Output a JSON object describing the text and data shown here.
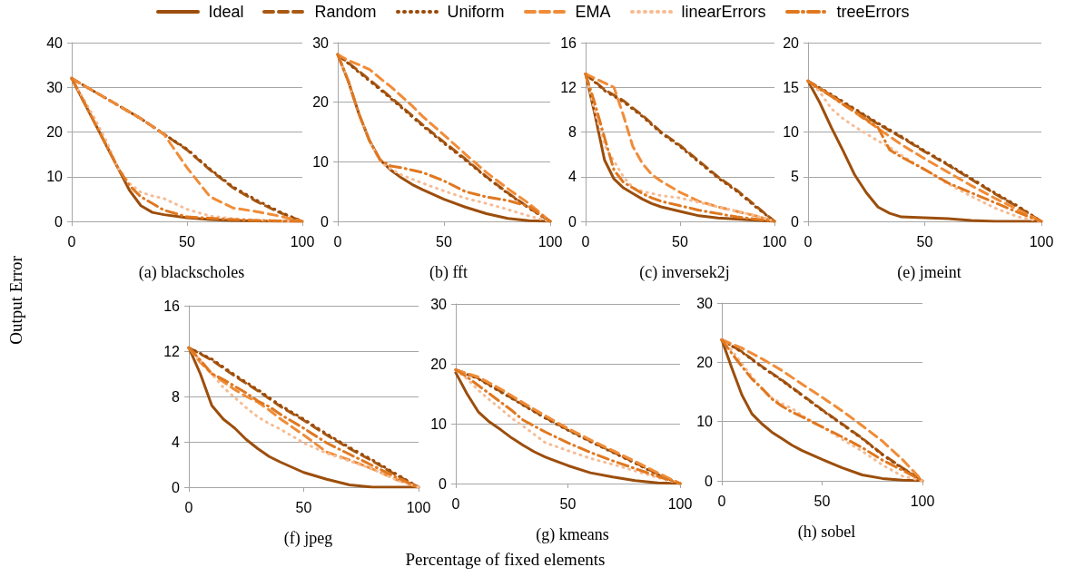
{
  "chart_data": [
    {
      "type": "line",
      "title": "(a) blackscholes",
      "ylabel": "Output Error",
      "legend": "top",
      "marker": "none",
      "grid": "y",
      "xlim": [
        0,
        100
      ],
      "xticks": [
        0,
        50,
        100
      ],
      "ylim": [
        0,
        40
      ],
      "yticks": [
        0,
        10,
        20,
        30,
        40
      ],
      "x": [
        0,
        5,
        10,
        15,
        20,
        25,
        30,
        35,
        40,
        50,
        60,
        70,
        80,
        90,
        100
      ],
      "series": [
        {
          "name": "Ideal",
          "color": "#9c4e0c",
          "line_style": "solid",
          "values": [
            32,
            27,
            22,
            17,
            12,
            7,
            3.5,
            2,
            1.5,
            0.8,
            0.4,
            0.2,
            0.1,
            0,
            0
          ]
        },
        {
          "name": "Random",
          "color": "#a85a14",
          "line_style": "dashed",
          "x": [
            0,
            10,
            20,
            30,
            40,
            50,
            60,
            70,
            80,
            90,
            100
          ],
          "values": [
            32,
            29,
            26,
            23,
            19.5,
            16,
            11.5,
            7.5,
            4.5,
            2,
            0
          ]
        },
        {
          "name": "Uniform",
          "color": "#9a4a0a",
          "line_style": "dotted",
          "x": [
            0,
            10,
            20,
            30,
            40,
            50,
            60,
            70,
            80,
            90,
            100
          ],
          "values": [
            32,
            29,
            26,
            23,
            19.5,
            16.2,
            11.7,
            7.7,
            4.8,
            2.2,
            0
          ]
        },
        {
          "name": "EMA",
          "color": "#f08c38",
          "line_style": "dashed",
          "x": [
            0,
            10,
            20,
            30,
            40,
            50,
            60,
            70,
            80,
            90,
            100
          ],
          "values": [
            32,
            29,
            26,
            23,
            19.5,
            12,
            5.5,
            3,
            2.2,
            1.2,
            0
          ]
        },
        {
          "name": "linearErrors",
          "color": "#f6bc94",
          "line_style": "dotted",
          "values": [
            32,
            27.5,
            23,
            18,
            12,
            8.5,
            6.5,
            5.7,
            5.1,
            2.7,
            1.2,
            0.6,
            0.3,
            0.1,
            0
          ]
        },
        {
          "name": "treeErrors",
          "color": "#e07820",
          "line_style": "dashdot",
          "values": [
            32,
            27,
            22,
            17,
            12,
            8,
            5.5,
            4,
            2.5,
            1,
            0.7,
            0.4,
            0.2,
            0.1,
            0
          ]
        }
      ]
    },
    {
      "type": "line",
      "title": "(b) fft",
      "marker": "none",
      "grid": "y",
      "xlim": [
        0,
        100
      ],
      "xticks": [
        0,
        50,
        100
      ],
      "ylim": [
        0,
        30
      ],
      "yticks": [
        0,
        10,
        20,
        30
      ],
      "x": [
        0,
        5,
        10,
        15,
        20,
        25,
        30,
        35,
        40,
        50,
        60,
        70,
        80,
        90,
        100
      ],
      "series": [
        {
          "color": "#9c4e0c",
          "line_style": "solid",
          "values": [
            28,
            23.5,
            18,
            13.5,
            10.3,
            8.6,
            7.3,
            6.2,
            5.3,
            3.7,
            2.4,
            1.3,
            0.5,
            0.1,
            0
          ]
        },
        {
          "color": "#a85a14",
          "line_style": "dashed",
          "x": [
            0,
            10,
            20,
            30,
            40,
            50,
            60,
            70,
            80,
            90,
            100
          ],
          "values": [
            28,
            25.2,
            22.3,
            19.3,
            16.2,
            13.3,
            10.5,
            7.5,
            4.8,
            2.3,
            0
          ]
        },
        {
          "color": "#9a4a0a",
          "line_style": "dotted",
          "x": [
            0,
            10,
            20,
            30,
            40,
            50,
            60,
            70,
            80,
            90,
            100
          ],
          "values": [
            28,
            25,
            22.1,
            19.1,
            16,
            13.1,
            10.3,
            7.4,
            4.7,
            2.2,
            0
          ]
        },
        {
          "color": "#f08c38",
          "line_style": "dashed",
          "values": [
            28,
            27,
            26.3,
            25.5,
            24,
            22.6,
            21,
            19.4,
            17.6,
            14.5,
            11.3,
            8.2,
            5.5,
            3,
            0
          ]
        },
        {
          "color": "#f6bc94",
          "line_style": "dotted",
          "values": [
            28,
            23.5,
            18,
            13.5,
            10,
            8.8,
            7.8,
            7.1,
            6.4,
            5.1,
            3.9,
            3,
            2,
            0.9,
            0
          ]
        },
        {
          "color": "#e07820",
          "line_style": "dashdot",
          "values": [
            28,
            23.5,
            18,
            13.5,
            10.3,
            9.3,
            9,
            8.6,
            8.2,
            6.8,
            5,
            4.1,
            3.5,
            2.5,
            0
          ]
        }
      ]
    },
    {
      "type": "line",
      "title": "(c) inversek2j",
      "marker": "none",
      "grid": "y",
      "xlim": [
        0,
        100
      ],
      "xticks": [
        0,
        50,
        100
      ],
      "ylim": [
        0,
        16
      ],
      "yticks": [
        0,
        4,
        8,
        12,
        16
      ],
      "x": [
        0,
        5,
        10,
        15,
        20,
        25,
        30,
        35,
        40,
        50,
        60,
        70,
        80,
        90,
        100
      ],
      "series": [
        {
          "color": "#9c4e0c",
          "line_style": "solid",
          "values": [
            13.2,
            9.5,
            5.5,
            3.8,
            3,
            2.5,
            2,
            1.6,
            1.3,
            0.9,
            0.5,
            0.3,
            0.2,
            0.1,
            0
          ]
        },
        {
          "color": "#a85a14",
          "line_style": "dashed",
          "x": [
            0,
            10,
            20,
            30,
            40,
            50,
            60,
            70,
            80,
            90,
            100
          ],
          "values": [
            13.2,
            11.8,
            10.8,
            9.5,
            8,
            6.8,
            5.4,
            4,
            2.8,
            1.4,
            0
          ]
        },
        {
          "color": "#9a4a0a",
          "line_style": "dotted",
          "x": [
            0,
            10,
            20,
            30,
            40,
            50,
            60,
            70,
            80,
            90,
            100
          ],
          "values": [
            13.2,
            11.7,
            10.7,
            9.4,
            7.9,
            6.7,
            5.3,
            3.9,
            2.7,
            1.3,
            0
          ]
        },
        {
          "color": "#f08c38",
          "line_style": "dashed",
          "values": [
            13.2,
            12.8,
            12.4,
            12,
            9.5,
            6.7,
            5.2,
            4.2,
            3.6,
            2.6,
            1.8,
            1.3,
            0.9,
            0.5,
            0
          ]
        },
        {
          "color": "#f6bc94",
          "line_style": "dotted",
          "values": [
            13.2,
            9.8,
            6.8,
            5.4,
            4,
            3,
            2.7,
            2.5,
            2.3,
            2.1,
            1.7,
            1.3,
            0.9,
            0.5,
            0
          ]
        },
        {
          "color": "#e07820",
          "line_style": "dashdot",
          "values": [
            13.2,
            10.5,
            7.5,
            4.6,
            3.5,
            3,
            2.5,
            2.1,
            1.8,
            1.4,
            1,
            0.7,
            0.4,
            0.2,
            0
          ]
        }
      ]
    },
    {
      "type": "line",
      "title": "(e) jmeint",
      "marker": "none",
      "grid": "y",
      "xlim": [
        0,
        100
      ],
      "xticks": [
        0,
        50,
        100
      ],
      "ylim": [
        0,
        20
      ],
      "yticks": [
        0,
        5,
        10,
        15,
        20
      ],
      "x": [
        0,
        5,
        10,
        15,
        20,
        25,
        30,
        35,
        40,
        50,
        60,
        70,
        80,
        90,
        100
      ],
      "series": [
        {
          "color": "#9c4e0c",
          "line_style": "solid",
          "values": [
            15.7,
            13.3,
            10.5,
            7.9,
            5.2,
            3.2,
            1.6,
            0.9,
            0.5,
            0.4,
            0.3,
            0.1,
            0,
            0,
            0
          ]
        },
        {
          "color": "#a85a14",
          "line_style": "dashed",
          "x": [
            0,
            10,
            20,
            30,
            40,
            50,
            60,
            70,
            80,
            90,
            100
          ],
          "values": [
            15.7,
            14.1,
            12.5,
            10.9,
            9.4,
            7.8,
            6.3,
            4.7,
            3.1,
            1.6,
            0
          ]
        },
        {
          "color": "#9a4a0a",
          "line_style": "dotted",
          "x": [
            0,
            10,
            20,
            30,
            40,
            50,
            60,
            70,
            80,
            90,
            100
          ],
          "values": [
            15.7,
            14.2,
            12.6,
            11,
            9.5,
            7.9,
            6.4,
            4.8,
            3.2,
            1.7,
            0
          ]
        },
        {
          "color": "#f08c38",
          "line_style": "dashed",
          "x": [
            0,
            10,
            20,
            30,
            40,
            50,
            60,
            70,
            80,
            90,
            100
          ],
          "values": [
            15.7,
            14,
            12.2,
            10.4,
            8.6,
            7,
            5.5,
            4,
            2.6,
            1.3,
            0
          ]
        },
        {
          "color": "#f6bc94",
          "line_style": "dotted",
          "values": [
            15.7,
            14.5,
            12.6,
            11.5,
            10.6,
            9.8,
            9,
            8.3,
            7.4,
            5.8,
            4.2,
            2.8,
            1.5,
            0.5,
            0
          ]
        },
        {
          "color": "#e07820",
          "line_style": "dashdot",
          "values": [
            15.7,
            14.8,
            14,
            13.1,
            12.3,
            11.4,
            10.5,
            8,
            7.2,
            5.8,
            4.3,
            3.2,
            2.1,
            1,
            0
          ]
        }
      ]
    },
    {
      "type": "line",
      "title": "(f) jpeg",
      "marker": "none",
      "grid": "y",
      "xlim": [
        0,
        100
      ],
      "xticks": [
        0,
        50,
        100
      ],
      "ylim": [
        0,
        16
      ],
      "yticks": [
        0,
        4,
        8,
        12,
        16
      ],
      "x": [
        0,
        5,
        10,
        15,
        20,
        25,
        30,
        35,
        40,
        50,
        60,
        70,
        80,
        90,
        100
      ],
      "series": [
        {
          "color": "#9c4e0c",
          "line_style": "solid",
          "values": [
            12.3,
            10,
            7.2,
            6,
            5.2,
            4.2,
            3.4,
            2.7,
            2.2,
            1.3,
            0.7,
            0.2,
            0,
            0,
            0
          ]
        },
        {
          "color": "#a85a14",
          "line_style": "dashed",
          "x": [
            0,
            10,
            20,
            30,
            40,
            50,
            60,
            70,
            80,
            90,
            100
          ],
          "values": [
            12.3,
            11.2,
            9.8,
            8.5,
            7.1,
            5.9,
            4.6,
            3.4,
            2.3,
            1.1,
            0
          ]
        },
        {
          "color": "#9a4a0a",
          "line_style": "dotted",
          "x": [
            0,
            10,
            20,
            30,
            40,
            50,
            60,
            70,
            80,
            90,
            100
          ],
          "values": [
            12.3,
            11.3,
            9.9,
            8.6,
            7.2,
            6,
            4.7,
            3.5,
            2.4,
            1.2,
            0
          ]
        },
        {
          "color": "#f08c38",
          "line_style": "dashed",
          "values": [
            12.3,
            11,
            10,
            9.3,
            8.6,
            8,
            7.5,
            6.8,
            6,
            4.6,
            3.1,
            2.4,
            1.6,
            0.7,
            0
          ]
        },
        {
          "color": "#f6bc94",
          "line_style": "dotted",
          "values": [
            12.3,
            11.2,
            10,
            8.8,
            7.9,
            7,
            6.2,
            5.6,
            5.1,
            3.9,
            3,
            2.3,
            1.6,
            0.7,
            0
          ]
        },
        {
          "color": "#e07820",
          "line_style": "dashdot",
          "values": [
            12.3,
            11.2,
            10,
            9.5,
            8.9,
            8.3,
            7.6,
            7.1,
            6.4,
            5.2,
            3.9,
            2.9,
            1.9,
            0.9,
            0
          ]
        }
      ]
    },
    {
      "type": "line",
      "title": "(g) kmeans",
      "xlabel": "Percentage of fixed elements",
      "marker": "none",
      "grid": "y",
      "xlim": [
        0,
        100
      ],
      "xticks": [
        0,
        50,
        100
      ],
      "ylim": [
        0,
        30
      ],
      "yticks": [
        0,
        10,
        20,
        30
      ],
      "x": [
        0,
        5,
        10,
        15,
        20,
        25,
        30,
        35,
        40,
        50,
        60,
        70,
        80,
        90,
        100
      ],
      "series": [
        {
          "color": "#9c4e0c",
          "line_style": "solid",
          "values": [
            18.5,
            15,
            12,
            10.3,
            9,
            7.6,
            6.4,
            5.3,
            4.4,
            3,
            1.8,
            1.1,
            0.5,
            0.1,
            0
          ]
        },
        {
          "color": "#a85a14",
          "line_style": "dashed",
          "x": [
            0,
            10,
            20,
            30,
            40,
            50,
            60,
            70,
            80,
            90,
            100
          ],
          "values": [
            19,
            17.6,
            15.4,
            13.2,
            11,
            9,
            7.1,
            5.3,
            3.5,
            1.6,
            0
          ]
        },
        {
          "color": "#9a4a0a",
          "line_style": "dotted",
          "x": [
            0,
            10,
            20,
            30,
            40,
            50,
            60,
            70,
            80,
            90,
            100
          ],
          "values": [
            19,
            17.5,
            15.3,
            13.1,
            10.9,
            8.9,
            7,
            5.2,
            3.4,
            1.5,
            0
          ]
        },
        {
          "color": "#f08c38",
          "line_style": "dashed",
          "x": [
            0,
            10,
            20,
            30,
            40,
            50,
            60,
            70,
            80,
            90,
            100
          ],
          "values": [
            19,
            17.8,
            15.8,
            13.5,
            11.3,
            9.2,
            7.3,
            5.5,
            3.7,
            1.8,
            0
          ]
        },
        {
          "color": "#f6bc94",
          "line_style": "dotted",
          "values": [
            19,
            17.5,
            15.6,
            14,
            12.5,
            10.9,
            9.6,
            8.2,
            6.8,
            5.5,
            4.2,
            3.2,
            2.1,
            1,
            0
          ]
        },
        {
          "color": "#e07820",
          "line_style": "dashdot",
          "values": [
            19,
            17.8,
            16.4,
            15,
            13.6,
            12.2,
            10.6,
            9.6,
            8.6,
            6.8,
            5.2,
            3.8,
            2.5,
            1.2,
            0
          ]
        }
      ]
    },
    {
      "type": "line",
      "title": "(h) sobel",
      "marker": "none",
      "grid": "y",
      "xlim": [
        0,
        100
      ],
      "xticks": [
        0,
        50,
        100
      ],
      "ylim": [
        0,
        30
      ],
      "yticks": [
        0,
        10,
        20,
        30
      ],
      "x": [
        0,
        5,
        10,
        15,
        20,
        25,
        30,
        35,
        40,
        50,
        60,
        70,
        80,
        90,
        100
      ],
      "series": [
        {
          "color": "#9c4e0c",
          "line_style": "solid",
          "values": [
            23.8,
            19,
            14.5,
            11.3,
            9.6,
            8.2,
            7.1,
            6,
            5.1,
            3.6,
            2.2,
            1,
            0.4,
            0.1,
            0
          ]
        },
        {
          "color": "#a85a14",
          "line_style": "dashed",
          "x": [
            0,
            10,
            20,
            30,
            40,
            50,
            60,
            70,
            80,
            90,
            100
          ],
          "values": [
            23.8,
            21.8,
            19.3,
            17,
            14.5,
            12,
            9.6,
            7.2,
            4.5,
            2.2,
            0
          ]
        },
        {
          "color": "#9a4a0a",
          "line_style": "dotted",
          "x": [
            0,
            10,
            20,
            30,
            40,
            50,
            60,
            70,
            80,
            90,
            100
          ],
          "values": [
            23.8,
            21.7,
            19.2,
            16.9,
            14.4,
            11.9,
            9.5,
            7.1,
            4.4,
            2.1,
            0
          ]
        },
        {
          "color": "#f08c38",
          "line_style": "dashed",
          "x": [
            0,
            10,
            20,
            30,
            40,
            50,
            60,
            70,
            80,
            90,
            100
          ],
          "values": [
            23.8,
            22.4,
            20.6,
            18.6,
            16.3,
            14.1,
            11.8,
            9.3,
            6.7,
            3.6,
            0
          ]
        },
        {
          "color": "#f6bc94",
          "line_style": "dotted",
          "values": [
            23.8,
            22,
            19.8,
            17.6,
            15.5,
            14,
            13,
            12.2,
            11,
            9.1,
            7,
            5,
            2.7,
            0.8,
            0
          ]
        },
        {
          "color": "#e07820",
          "line_style": "dashdot",
          "values": [
            23.8,
            21.5,
            19.3,
            17.2,
            15.6,
            13.8,
            12.6,
            11.6,
            10.8,
            9.1,
            7.4,
            5.6,
            3.5,
            1.8,
            0
          ]
        }
      ]
    }
  ]
}
